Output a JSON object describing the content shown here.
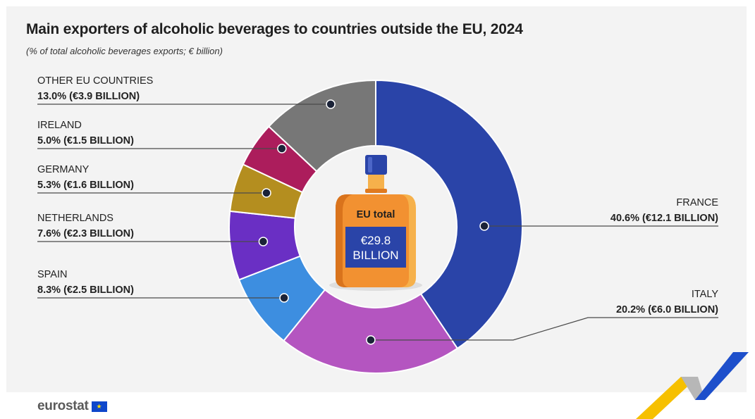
{
  "header": {
    "title": "Main exporters of alcoholic beverages to countries outside the EU, 2024",
    "subtitle": "(% of total alcoholic beverages exports; € billion)"
  },
  "center": {
    "label": "EU total",
    "value_line1": "€29.8",
    "value_line2": "BILLION"
  },
  "chart_data": {
    "type": "pie",
    "title": "Main exporters of alcoholic beverages to countries outside the EU, 2024",
    "subtitle": "(% of total alcoholic beverages exports; € billion)",
    "unit": "% of total alcoholic beverages exports",
    "total_label": "EU total €29.8 BILLION",
    "slices": [
      {
        "key": "france",
        "name": "FRANCE",
        "value": 40.6,
        "value_label": "40.6% (€12.1 BILLION)",
        "color": "#2a44a8"
      },
      {
        "key": "italy",
        "name": "ITALY",
        "value": 20.2,
        "value_label": "20.2% (€6.0 BILLION)",
        "color": "#b455c0"
      },
      {
        "key": "spain",
        "name": "SPAIN",
        "value": 8.3,
        "value_label": "8.3% (€2.5 BILLION)",
        "color": "#3d8ee0"
      },
      {
        "key": "netherlands",
        "name": "NETHERLANDS",
        "value": 7.6,
        "value_label": "7.6% (€2.3 BILLION)",
        "color": "#6a2fc4"
      },
      {
        "key": "germany",
        "name": "GERMANY",
        "value": 5.3,
        "value_label": "5.3% (€1.6 BILLION)",
        "color": "#b48e1f"
      },
      {
        "key": "ireland",
        "name": "IRELAND",
        "value": 5.0,
        "value_label": "5.0% (€1.5 BILLION)",
        "color": "#ac1d5c"
      },
      {
        "key": "other",
        "name": "OTHER EU COUNTRIES",
        "value": 13.0,
        "value_label": "13.0% (€3.9 BILLION)",
        "color": "#777777"
      }
    ]
  },
  "footer": {
    "brand": "eurostat",
    "flag_stars": "★"
  },
  "colors": {
    "background": "#f3f3f3",
    "leader_line": "#4a4a4a",
    "dot": "#1b2338",
    "bottle_body": "#f29131",
    "bottle_cap": "#2a44a8",
    "accent_yellow": "#f6c000",
    "accent_blue": "#1d4fcb"
  }
}
